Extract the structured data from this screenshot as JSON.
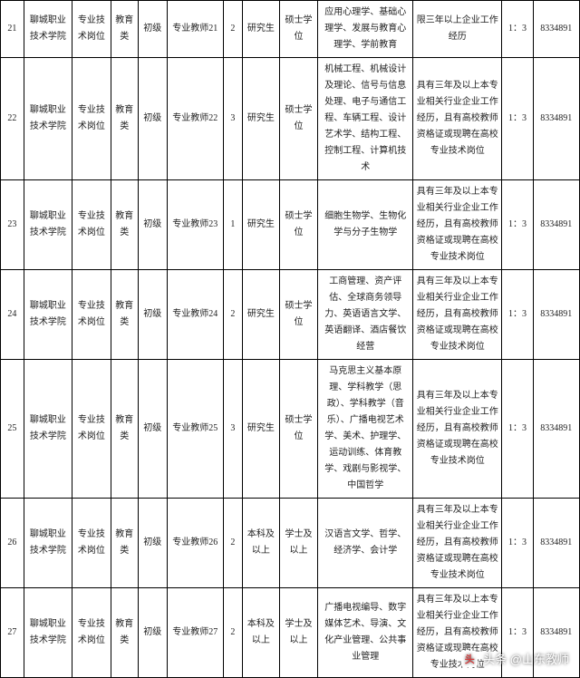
{
  "rows": [
    {
      "idx": "21",
      "inst": "聊城职业技术学院",
      "postype": "专业技术岗位",
      "cat": "教育类",
      "level": "初级",
      "posname": "专业教师21",
      "num": "2",
      "edu": "研究生",
      "degree": "硕士学位",
      "major": "应用心理学、基础心理学、发展与教育心理学、学前教育",
      "req": "限三年以上企业工作经历",
      "ratio": "1：3",
      "phone": "8334891"
    },
    {
      "idx": "22",
      "inst": "聊城职业技术学院",
      "postype": "专业技术岗位",
      "cat": "教育类",
      "level": "初级",
      "posname": "专业教师22",
      "num": "3",
      "edu": "研究生",
      "degree": "硕士学位",
      "major": "机械工程、机械设计及理论、信号与信息处理、电子与通信工程、车辆工程、设计艺术学、结构工程、控制工程、计算机技术",
      "req": "具有三年及以上本专业相关行业企业工作经历，且有高校教师资格证或现聘在高校专业技术岗位",
      "ratio": "1：3",
      "phone": "8334891"
    },
    {
      "idx": "23",
      "inst": "聊城职业技术学院",
      "postype": "专业技术岗位",
      "cat": "教育类",
      "level": "初级",
      "posname": "专业教师23",
      "num": "1",
      "edu": "研究生",
      "degree": "硕士学位",
      "major": "细胞生物学、生物化学与分子生物学",
      "req": "具有三年及以上本专业相关行业企业工作经历，且有高校教师资格证或现聘在高校专业技术岗位",
      "ratio": "1：3",
      "phone": "8334891"
    },
    {
      "idx": "24",
      "inst": "聊城职业技术学院",
      "postype": "专业技术岗位",
      "cat": "教育类",
      "level": "初级",
      "posname": "专业教师24",
      "num": "2",
      "edu": "研究生",
      "degree": "硕士学位",
      "major": "工商管理、资产评估、全球商务领导力、英语语言文学、英语翻译、酒店餐饮经营",
      "req": "具有三年及以上本专业相关行业企业工作经历，且有高校教师资格证或现聘在高校专业技术岗位",
      "ratio": "1：3",
      "phone": "8334891"
    },
    {
      "idx": "25",
      "inst": "聊城职业技术学院",
      "postype": "专业技术岗位",
      "cat": "教育类",
      "level": "初级",
      "posname": "专业教师25",
      "num": "3",
      "edu": "研究生",
      "degree": "硕士学位",
      "major": "马克思主义基本原理、学科教学（思政）、学科教学（音乐）、广播电视艺术学、美术、护理学、运动训练、体育教学、戏剧与影视学、中国哲学",
      "req": "具有三年及以上本专业相关行业企业工作经历，且有高校教师资格证或现聘在高校专业技术岗位",
      "ratio": "1：3",
      "phone": "8334891"
    },
    {
      "idx": "26",
      "inst": "聊城职业技术学院",
      "postype": "专业技术岗位",
      "cat": "教育类",
      "level": "初级",
      "posname": "专业教师26",
      "num": "2",
      "edu": "本科及以上",
      "degree": "学士及以上",
      "major": "汉语言文学、哲学、经济学、会计学",
      "req": "具有三年及以上本专业相关行业企业工作经历，且有高校教师资格证或现聘在高校专业技术岗位",
      "ratio": "1：3",
      "phone": "8334891"
    },
    {
      "idx": "27",
      "inst": "聊城职业技术学院",
      "postype": "专业技术岗位",
      "cat": "教育类",
      "level": "初级",
      "posname": "专业教师27",
      "num": "2",
      "edu": "本科及以上",
      "degree": "学士及以上",
      "major": "广播电视编导、数字媒体艺术、导演、文化产业管理、公共事业管理",
      "req": "具有三年及以上本专业相关行业企业工作经历，且有高校教师资格证或现聘在高校专业技术岗位",
      "ratio": "1：3",
      "phone": "8334891"
    }
  ],
  "watermark": {
    "icon": "头",
    "text": "头条 @山东教师"
  }
}
